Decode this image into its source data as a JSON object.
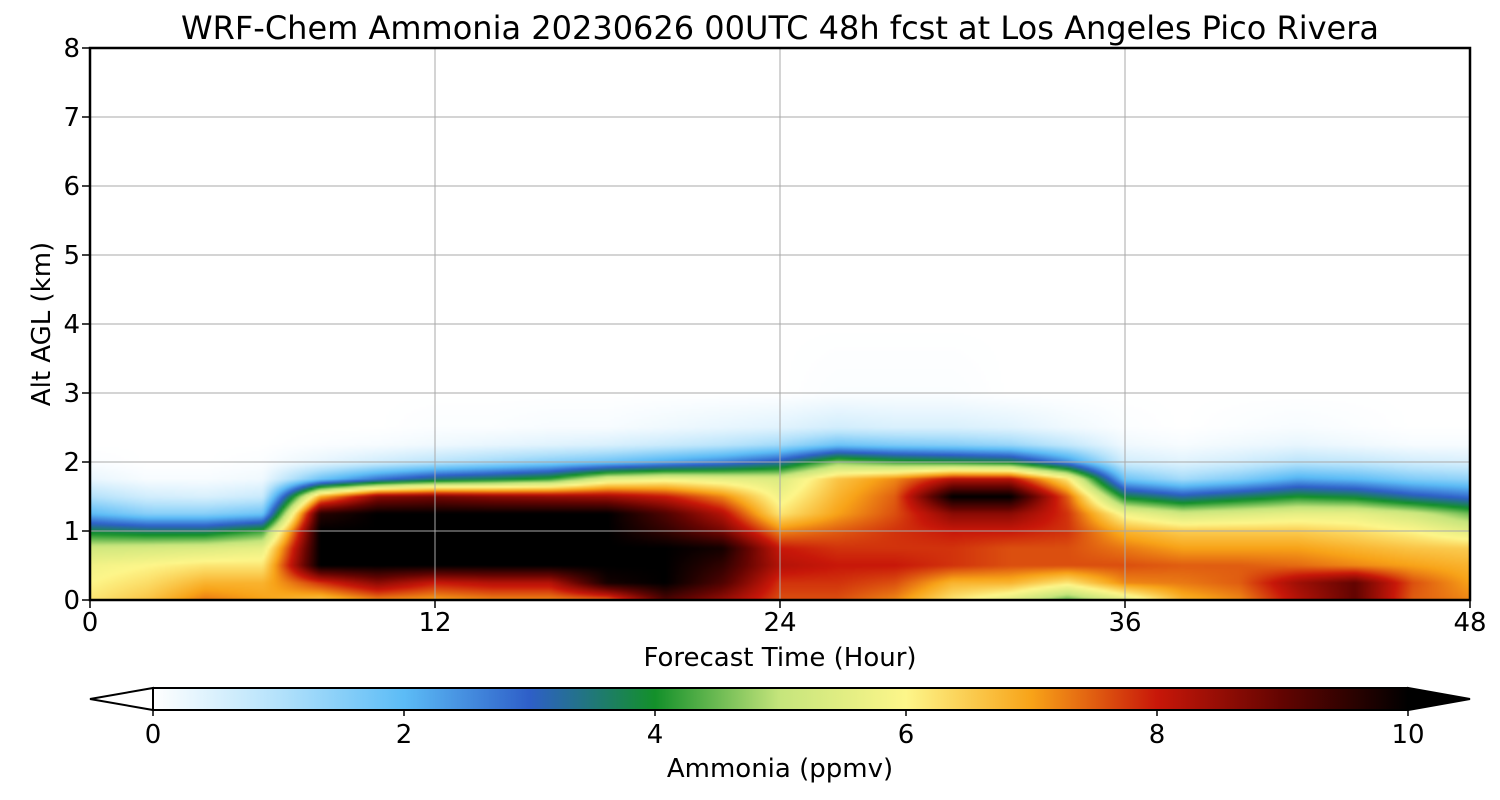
{
  "chart_data": {
    "type": "heatmap",
    "title": "WRF-Chem Ammonia  20230626 00UTC 48h fcst at Los Angeles Pico Rivera",
    "xlabel": "Forecast Time (Hour)",
    "ylabel": "Alt AGL (km)",
    "xlim": [
      0,
      48
    ],
    "ylim": [
      0,
      8
    ],
    "x_ticks": [
      0,
      12,
      24,
      36,
      48
    ],
    "y_ticks": [
      0,
      1,
      2,
      3,
      4,
      5,
      6,
      7,
      8
    ],
    "grid": true,
    "colorbar": {
      "label": "Ammonia  (ppmv)",
      "range": [
        0,
        10
      ],
      "ticks": [
        0,
        2,
        4,
        6,
        8,
        10
      ],
      "extend": "both",
      "colors": [
        "#ffffff",
        "#b4e2fb",
        "#5cbcf6",
        "#2e5fc8",
        "#13902a",
        "#c6e57c",
        "#fdf68a",
        "#f8a318",
        "#c81709",
        "#620401",
        "#000000"
      ]
    },
    "x": [
      0,
      2,
      4,
      6,
      8,
      10,
      12,
      14,
      16,
      18,
      20,
      22,
      24,
      26,
      28,
      30,
      32,
      34,
      36,
      38,
      40,
      42,
      44,
      46,
      48
    ],
    "y": [
      0,
      0.25,
      0.5,
      0.75,
      1.0,
      1.25,
      1.5,
      1.75,
      2.0,
      2.25,
      2.5,
      3.0,
      4.0,
      8.0
    ],
    "values": [
      [
        6.2,
        6.6,
        7.3,
        7.0,
        6.6,
        7.2,
        7.0,
        7.2,
        7.2,
        7.4,
        9.2,
        8.5,
        7.6,
        7.6,
        7.2,
        6.2,
        5.5,
        4.4,
        5.5,
        6.8,
        7.2,
        8.2,
        9.0,
        7.5,
        7.2
      ],
      [
        6.0,
        6.3,
        6.8,
        6.8,
        7.8,
        8.6,
        8.0,
        8.2,
        8.2,
        9.8,
        10.0,
        9.2,
        7.8,
        7.8,
        7.6,
        6.8,
        6.8,
        6.2,
        7.2,
        7.3,
        7.5,
        8.4,
        9.0,
        7.6,
        7.0
      ],
      [
        5.8,
        6.0,
        6.2,
        6.2,
        10.0,
        10.0,
        10.0,
        10.0,
        10.0,
        10.0,
        10.0,
        9.5,
        8.2,
        8.0,
        8.0,
        7.8,
        7.6,
        7.6,
        7.6,
        7.5,
        7.5,
        7.4,
        7.2,
        7.0,
        6.8
      ],
      [
        5.2,
        5.3,
        5.4,
        5.6,
        10.0,
        10.0,
        10.0,
        10.0,
        10.0,
        10.0,
        10.0,
        9.8,
        8.0,
        7.8,
        7.8,
        7.8,
        7.6,
        7.6,
        7.3,
        7.0,
        7.0,
        7.0,
        6.8,
        6.6,
        6.5
      ],
      [
        3.8,
        3.6,
        3.6,
        4.2,
        10.0,
        10.0,
        10.0,
        10.0,
        10.0,
        10.0,
        9.5,
        8.8,
        7.2,
        7.5,
        7.8,
        8.0,
        8.0,
        7.8,
        6.8,
        6.5,
        6.5,
        6.5,
        6.3,
        6.0,
        5.5
      ],
      [
        2.0,
        1.5,
        1.5,
        1.8,
        9.6,
        10.0,
        10.0,
        10.0,
        10.0,
        10.0,
        9.2,
        8.2,
        6.2,
        7.0,
        7.6,
        8.6,
        8.6,
        7.8,
        5.8,
        5.2,
        5.4,
        5.6,
        5.6,
        5.2,
        4.5
      ],
      [
        1.0,
        0.6,
        0.5,
        0.7,
        6.8,
        8.6,
        8.8,
        8.6,
        8.5,
        8.4,
        8.0,
        7.2,
        5.8,
        6.8,
        7.5,
        10.0,
        10.0,
        7.5,
        3.8,
        3.2,
        3.6,
        4.0,
        3.8,
        3.2,
        2.8
      ],
      [
        0.3,
        0.1,
        0.1,
        0.2,
        1.8,
        2.8,
        3.5,
        3.8,
        4.2,
        5.5,
        5.8,
        5.6,
        5.4,
        6.6,
        7.2,
        8.2,
        8.2,
        6.2,
        1.8,
        1.2,
        1.6,
        2.2,
        2.0,
        1.6,
        1.4
      ],
      [
        0.05,
        0.0,
        0.0,
        0.05,
        0.3,
        0.6,
        0.9,
        1.2,
        1.5,
        1.8,
        2.2,
        2.6,
        3.2,
        4.6,
        4.2,
        4.0,
        3.8,
        2.5,
        0.6,
        0.4,
        0.6,
        0.9,
        0.8,
        0.6,
        0.5
      ],
      [
        0.0,
        0.0,
        0.0,
        0.0,
        0.05,
        0.1,
        0.2,
        0.3,
        0.4,
        0.5,
        0.7,
        0.9,
        1.2,
        1.8,
        1.6,
        1.5,
        1.3,
        0.8,
        0.2,
        0.1,
        0.2,
        0.3,
        0.2,
        0.1,
        0.1
      ],
      [
        0.0,
        0.0,
        0.0,
        0.0,
        0.0,
        0.0,
        0.05,
        0.05,
        0.1,
        0.1,
        0.2,
        0.3,
        0.4,
        0.6,
        0.5,
        0.5,
        0.4,
        0.2,
        0.05,
        0.0,
        0.05,
        0.1,
        0.05,
        0.0,
        0.0
      ],
      [
        0.0,
        0.0,
        0.0,
        0.0,
        0.0,
        0.0,
        0.0,
        0.0,
        0.0,
        0.0,
        0.0,
        0.0,
        0.0,
        0.05,
        0.05,
        0.05,
        0.0,
        0.0,
        0.0,
        0.0,
        0.0,
        0.0,
        0.0,
        0.0,
        0.0
      ],
      [
        0.0,
        0.0,
        0.0,
        0.0,
        0.0,
        0.0,
        0.0,
        0.0,
        0.0,
        0.0,
        0.0,
        0.0,
        0.0,
        0.0,
        0.0,
        0.0,
        0.0,
        0.0,
        0.0,
        0.0,
        0.0,
        0.0,
        0.0,
        0.0,
        0.0
      ],
      [
        0.0,
        0.0,
        0.0,
        0.0,
        0.0,
        0.0,
        0.0,
        0.0,
        0.0,
        0.0,
        0.0,
        0.0,
        0.0,
        0.0,
        0.0,
        0.0,
        0.0,
        0.0,
        0.0,
        0.0,
        0.0,
        0.0,
        0.0,
        0.0,
        0.0
      ]
    ]
  }
}
